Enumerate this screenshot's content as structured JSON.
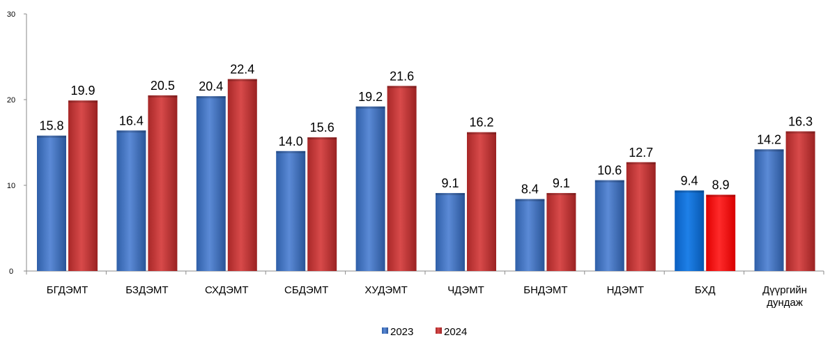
{
  "chart_data": {
    "type": "bar",
    "categories": [
      "БГДЭМТ",
      "БЗДЭМТ",
      "СХДЭМТ",
      "СБДЭМТ",
      "ХУДЭМТ",
      "ЧДЭМТ",
      "БНДЭМТ",
      "НДЭМТ",
      "БХД",
      "Дүүргийн дундаж"
    ],
    "series": [
      {
        "name": "2023",
        "values": [
          15.8,
          16.4,
          20.4,
          14.0,
          19.2,
          9.1,
          8.4,
          10.6,
          9.4,
          14.2
        ],
        "labels": [
          "15.8",
          "16.4",
          "20.4",
          "14.0",
          "19.2",
          "9.1",
          "8.4",
          "10.6",
          "9.4",
          "14.2"
        ],
        "color": "#4a7bc8"
      },
      {
        "name": "2024",
        "values": [
          19.9,
          20.5,
          22.4,
          15.6,
          21.6,
          16.2,
          9.1,
          12.7,
          8.9,
          16.3
        ],
        "labels": [
          "19.9",
          "20.5",
          "22.4",
          "15.6",
          "21.6",
          "16.2",
          "9.1",
          "12.7",
          "8.9",
          "16.3"
        ],
        "color": "#cc3a3a"
      }
    ],
    "highlight": {
      "category_index": 8,
      "colors": [
        "#0a6fd6",
        "#ff0a0a"
      ]
    },
    "yticks": [
      "0",
      "10",
      "20",
      "30"
    ],
    "ylim": [
      0,
      30
    ],
    "title": "",
    "xlabel": "",
    "ylabel": "",
    "grid": false,
    "legend": "bottom-center"
  }
}
